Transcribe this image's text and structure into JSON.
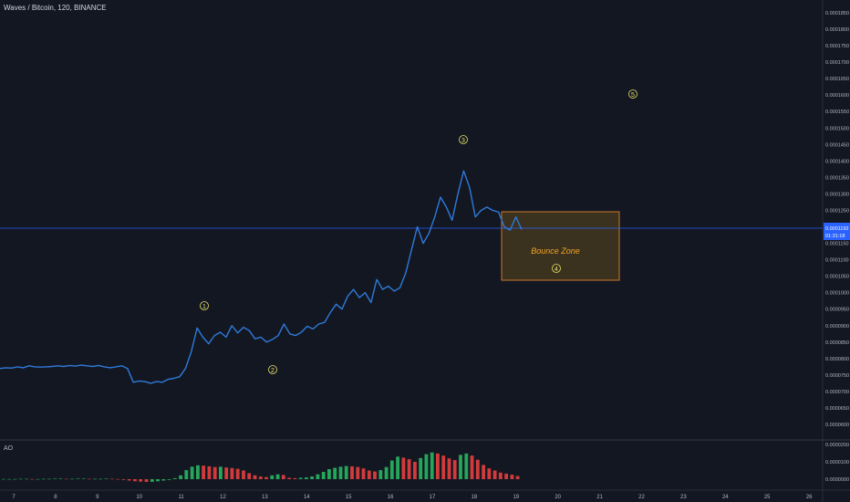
{
  "header": {
    "title": "Waves / Bitcoin, 120, BINANCE"
  },
  "indicator": {
    "label": "AO"
  },
  "price_axis": {
    "ticks": [
      "0.0001850",
      "0.0001800",
      "0.0001750",
      "0.0001700",
      "0.0001650",
      "0.0001600",
      "0.0001550",
      "0.0001500",
      "0.0001450",
      "0.0001400",
      "0.0001350",
      "0.0001300",
      "0.0001250",
      "0.0001150",
      "0.0001100",
      "0.0001050",
      "0.0001000",
      "0.0000950",
      "0.0000900",
      "0.0000850",
      "0.0000800",
      "0.0000750",
      "0.0000700",
      "0.0000650",
      "0.0000600"
    ],
    "last_price": "0.0001192",
    "countdown": "01:31:18"
  },
  "ao_axis": {
    "ticks": [
      "0.0000200",
      "0.0000100",
      "0.0000000"
    ]
  },
  "time_axis": {
    "ticks": [
      "7",
      "8",
      "9",
      "10",
      "11",
      "12",
      "13",
      "14",
      "15",
      "16",
      "17",
      "18",
      "19",
      "20",
      "21",
      "22",
      "23",
      "24",
      "25",
      "26"
    ]
  },
  "annotations": {
    "zone_label": "Bounce Zone",
    "waves": [
      "1",
      "2",
      "3",
      "4",
      "5"
    ]
  },
  "colors": {
    "background": "#131722",
    "line": "#2f7ad9",
    "price_line": "#2962ff",
    "zone_fill": "#4a3b1f",
    "zone_border": "#c8782a",
    "zone_text": "#f5a623",
    "wave_marker": "#e8e36a",
    "ao_up": "#26a65b",
    "ao_down": "#d23b3b"
  },
  "chart_data": {
    "type": "line",
    "series": [
      {
        "values": [
          7.7e-05,
          7.72e-05,
          7.71e-05,
          7.75e-05,
          7.72e-05,
          7.78e-05,
          7.75e-05,
          7.74e-05,
          7.75e-05,
          7.76e-05,
          7.78e-05,
          7.76e-05,
          7.79e-05,
          7.77e-05,
          7.8e-05,
          7.78e-05,
          7.76e-05,
          7.79e-05,
          7.75e-05,
          7.72e-05,
          7.75e-05,
          7.78e-05,
          7.7e-05,
          7.28e-05,
          7.32e-05,
          7.3e-05,
          7.25e-05,
          7.3e-05,
          7.28e-05,
          7.37e-05,
          7.4e-05,
          7.45e-05,
          7.7e-05,
          8.2e-05,
          8.93e-05,
          8.65e-05,
          8.45e-05,
          8.7e-05,
          8.8e-05,
          8.65e-05,
          9e-05,
          8.78e-05,
          8.95e-05,
          8.85e-05,
          8.6e-05,
          8.65e-05,
          8.5e-05,
          8.58e-05,
          8.7e-05,
          9.05e-05,
          8.75e-05,
          8.7e-05,
          8.8e-05,
          8.98e-05,
          8.9e-05,
          9.05e-05,
          9.1e-05,
          9.4e-05,
          9.65e-05,
          9.5e-05,
          9.9e-05,
          0.000101,
          9.85e-05,
          0.0001,
          9.7e-05,
          0.000104,
          0.000101,
          0.000102,
          0.0001005,
          0.0001015,
          0.000106,
          0.000113,
          0.00012,
          0.000115,
          0.000118,
          0.000123,
          0.000129,
          0.000126,
          0.000122,
          0.00013,
          0.000137,
          0.000132,
          0.000123,
          0.000125,
          0.000126,
          0.000125,
          0.0001245,
          0.00012,
          0.000119,
          0.000123,
          0.0001192
        ]
      }
    ],
    "ylim": [
      6e-05,
      0.000185
    ],
    "ao_values": [
      1e-07,
      1e-07,
      1e-07,
      2e-07,
      2e-07,
      1e-07,
      1e-07,
      2e-07,
      2e-07,
      3e-07,
      3e-07,
      2e-07,
      2e-07,
      3e-07,
      3e-07,
      2e-07,
      2e-07,
      2e-07,
      3e-07,
      2e-07,
      1e-07,
      -4e-07,
      -8e-07,
      -1.2e-06,
      -1.4e-06,
      -1.6e-06,
      -1.5e-06,
      -1.2e-06,
      -8e-07,
      -4e-07,
      6e-07,
      2.2e-06,
      5.2e-06,
      7.2e-06,
      8e-06,
      7.8e-06,
      7.4e-06,
      7e-06,
      7.2e-06,
      6.8e-06,
      6.4e-06,
      6e-06,
      5e-06,
      3.5e-06,
      2.2e-06,
      1.5e-06,
      1.2e-06,
      2.2e-06,
      2.8e-06,
      2.4e-06,
      8e-07,
      6e-07,
      8e-07,
      1e-06,
      1.6e-06,
      2.8e-06,
      4.2e-06,
      5.8e-06,
      6.6e-06,
      7.2e-06,
      7.6e-06,
      7.4e-06,
      7e-06,
      6.2e-06,
      5e-06,
      4.4e-06,
      5.2e-06,
      7e-06,
      1.08e-05,
      1.3e-05,
      1.24e-05,
      1.15e-05,
      1e-05,
      1.22e-05,
      1.44e-05,
      1.54e-05,
      1.48e-05,
      1.36e-05,
      1.2e-05,
      1.1e-05,
      1.4e-05,
      1.48e-05,
      1.36e-05,
      1.12e-05,
      8.2e-06,
      6.2e-06,
      5e-06,
      3.8e-06,
      3.2e-06,
      2.6e-06,
      1.8e-06
    ]
  }
}
